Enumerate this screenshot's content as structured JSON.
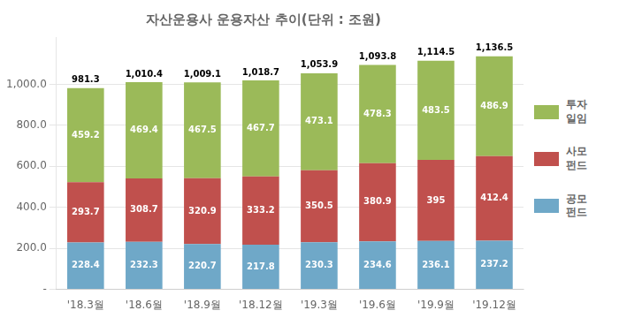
{
  "chart_data": {
    "type": "bar",
    "title": "자산운용사 운용자산 추이(단위 : 조원)",
    "categories": [
      "'18.3월",
      "'18.6월",
      "'18.9월",
      "'18.12월",
      "'19.3월",
      "'19.6월",
      "'19.9월",
      "'19.12월"
    ],
    "series": [
      {
        "name": "공모\n펀드",
        "color": "#6fa8c8",
        "values": [
          228.4,
          232.3,
          220.7,
          217.8,
          230.3,
          234.6,
          236.1,
          237.2
        ]
      },
      {
        "name": "사모\n펀드",
        "color": "#c0504d",
        "values": [
          293.7,
          308.7,
          320.9,
          333.2,
          350.5,
          380.9,
          395.0,
          412.4
        ]
      },
      {
        "name": "투자\n일임",
        "color": "#9bba59",
        "values": [
          459.2,
          469.4,
          467.5,
          467.7,
          473.1,
          478.3,
          483.5,
          486.9
        ]
      }
    ],
    "stacked": true,
    "data_labels": true,
    "totals": [
      981.3,
      1010.4,
      1009.1,
      1018.7,
      1053.9,
      1093.8,
      1114.5,
      1136.5
    ],
    "total_labels": [
      "981.3",
      "1,010.4",
      "1,009.1",
      "1,018.7",
      "1,053.9",
      "1,093.8",
      "1,114.5",
      "1,136.5"
    ],
    "ylim": [
      0,
      1230
    ],
    "yticks": [
      {
        "value": 0,
        "label": "-"
      },
      {
        "value": 200,
        "label": "200.0"
      },
      {
        "value": 400,
        "label": "400.0"
      },
      {
        "value": 600,
        "label": "600.0"
      },
      {
        "value": 800,
        "label": "800.0"
      },
      {
        "value": 1000,
        "label": "1,000.0"
      }
    ],
    "grid": true,
    "legend": "right"
  }
}
